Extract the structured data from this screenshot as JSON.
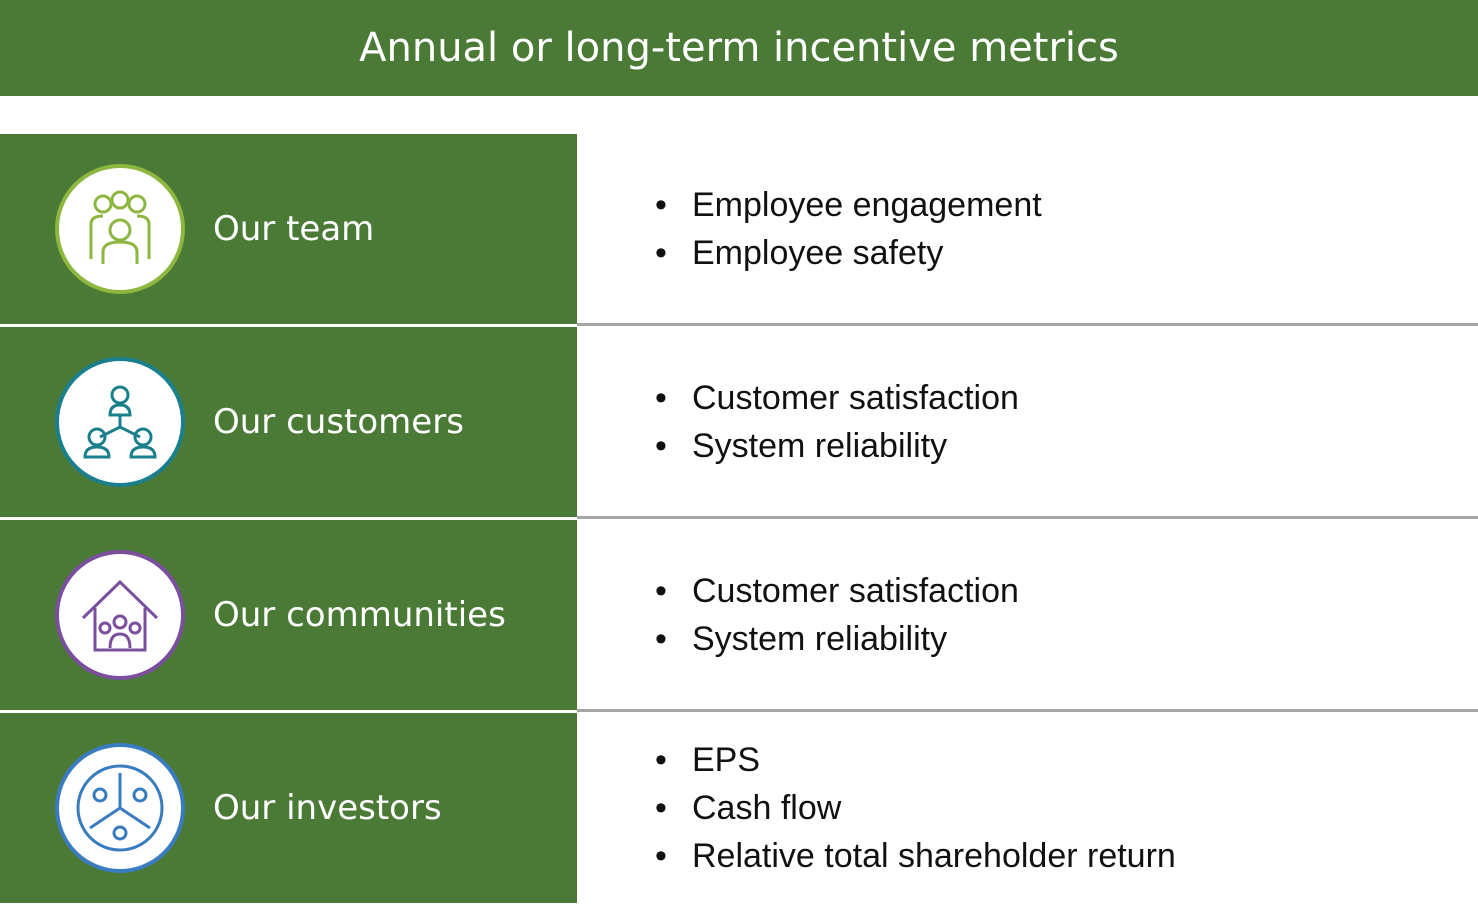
{
  "header": {
    "title": "Annual or long-term incentive metrics"
  },
  "rows": [
    {
      "label": "Our team",
      "items": [
        "Employee engagement",
        "Employee safety"
      ]
    },
    {
      "label": "Our customers",
      "items": [
        "Customer satisfaction",
        "System reliability"
      ]
    },
    {
      "label": "Our communities",
      "items": [
        "Customer satisfaction",
        "System reliability"
      ]
    },
    {
      "label": "Our investors",
      "items": [
        "EPS",
        "Cash flow",
        "Relative total shareholder return"
      ]
    }
  ]
}
